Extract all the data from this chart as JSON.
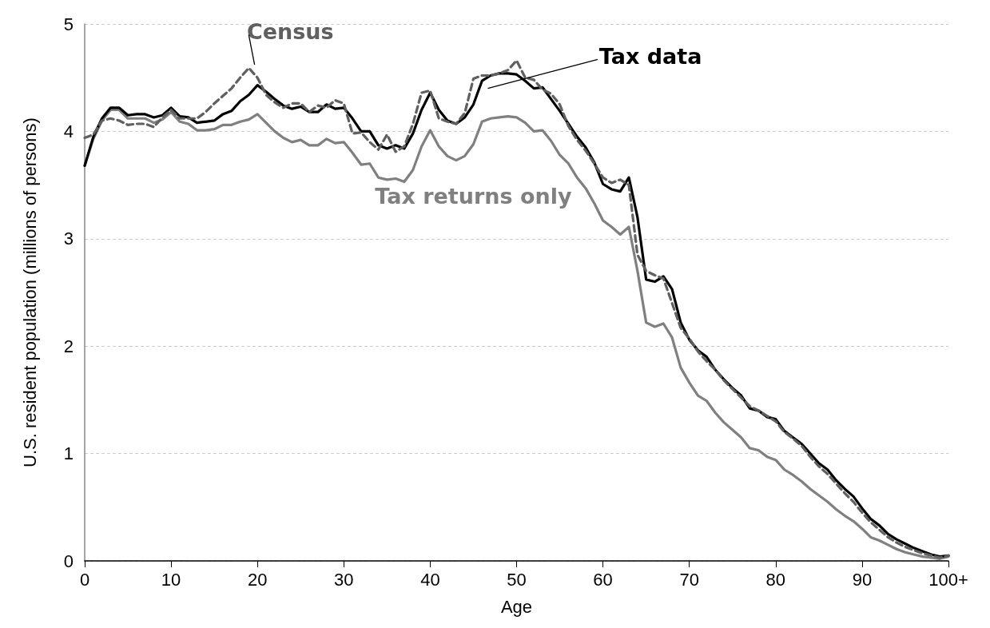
{
  "chart_data": {
    "type": "line",
    "xlabel": "Age",
    "ylabel": "U.S. resident population (millions of persons)",
    "x": [
      0,
      1,
      2,
      3,
      4,
      5,
      6,
      7,
      8,
      9,
      10,
      11,
      12,
      13,
      14,
      15,
      16,
      17,
      18,
      19,
      20,
      21,
      22,
      23,
      24,
      25,
      26,
      27,
      28,
      29,
      30,
      31,
      32,
      33,
      34,
      35,
      36,
      37,
      38,
      39,
      40,
      41,
      42,
      43,
      44,
      45,
      46,
      47,
      48,
      49,
      50,
      51,
      52,
      53,
      54,
      55,
      56,
      57,
      58,
      59,
      60,
      61,
      62,
      63,
      64,
      65,
      66,
      67,
      68,
      69,
      70,
      71,
      72,
      73,
      74,
      75,
      76,
      77,
      78,
      79,
      80,
      81,
      82,
      83,
      84,
      85,
      86,
      87,
      88,
      89,
      90,
      91,
      92,
      93,
      94,
      95,
      96,
      97,
      98,
      99,
      100
    ],
    "series": [
      {
        "name": "Census",
        "color": "#606060",
        "line_style": "dashed",
        "values": [
          3.94,
          3.97,
          4.1,
          4.12,
          4.1,
          4.06,
          4.07,
          4.07,
          4.04,
          4.13,
          4.2,
          4.12,
          4.12,
          4.12,
          4.18,
          4.26,
          4.33,
          4.4,
          4.5,
          4.59,
          4.5,
          4.34,
          4.27,
          4.22,
          4.26,
          4.26,
          4.18,
          4.24,
          4.22,
          4.29,
          4.26,
          3.98,
          3.99,
          3.9,
          3.83,
          3.97,
          3.81,
          3.86,
          4.07,
          4.36,
          4.38,
          4.12,
          4.09,
          4.07,
          4.17,
          4.49,
          4.52,
          4.52,
          4.54,
          4.57,
          4.66,
          4.5,
          4.48,
          4.39,
          4.35,
          4.25,
          4.05,
          3.92,
          3.82,
          3.7,
          3.57,
          3.52,
          3.55,
          3.5,
          2.85,
          2.7,
          2.66,
          2.63,
          2.4,
          2.17,
          2.07,
          1.95,
          1.86,
          1.78,
          1.68,
          1.6,
          1.52,
          1.44,
          1.4,
          1.35,
          1.3,
          1.2,
          1.14,
          1.07,
          0.97,
          0.88,
          0.81,
          0.72,
          0.63,
          0.55,
          0.45,
          0.36,
          0.29,
          0.22,
          0.17,
          0.13,
          0.1,
          0.07,
          0.05,
          0.03,
          0.05
        ]
      },
      {
        "name": "Tax data",
        "color": "#000000",
        "line_style": "solid",
        "values": [
          3.68,
          3.95,
          4.12,
          4.22,
          4.22,
          4.15,
          4.16,
          4.16,
          4.13,
          4.15,
          4.22,
          4.14,
          4.13,
          4.08,
          4.09,
          4.1,
          4.16,
          4.19,
          4.28,
          4.34,
          4.43,
          4.37,
          4.3,
          4.24,
          4.21,
          4.23,
          4.18,
          4.18,
          4.25,
          4.21,
          4.22,
          4.12,
          4.0,
          4.0,
          3.87,
          3.84,
          3.87,
          3.84,
          3.98,
          4.2,
          4.36,
          4.2,
          4.1,
          4.07,
          4.13,
          4.25,
          4.47,
          4.52,
          4.54,
          4.54,
          4.53,
          4.47,
          4.4,
          4.41,
          4.3,
          4.19,
          4.07,
          3.95,
          3.85,
          3.71,
          3.51,
          3.46,
          3.44,
          3.57,
          3.2,
          2.62,
          2.6,
          2.65,
          2.53,
          2.22,
          2.06,
          1.96,
          1.9,
          1.78,
          1.69,
          1.61,
          1.54,
          1.42,
          1.4,
          1.34,
          1.32,
          1.21,
          1.15,
          1.09,
          1.0,
          0.91,
          0.85,
          0.75,
          0.67,
          0.6,
          0.49,
          0.39,
          0.33,
          0.25,
          0.2,
          0.16,
          0.12,
          0.09,
          0.06,
          0.04,
          0.05
        ]
      },
      {
        "name": "Tax returns only",
        "color": "#808080",
        "line_style": "solid",
        "values": [
          3.68,
          3.93,
          4.1,
          4.2,
          4.2,
          4.12,
          4.12,
          4.12,
          4.08,
          4.11,
          4.18,
          4.09,
          4.07,
          4.01,
          4.01,
          4.02,
          4.06,
          4.06,
          4.09,
          4.11,
          4.16,
          4.08,
          4.0,
          3.94,
          3.9,
          3.92,
          3.87,
          3.87,
          3.93,
          3.89,
          3.9,
          3.8,
          3.69,
          3.7,
          3.57,
          3.55,
          3.56,
          3.53,
          3.64,
          3.86,
          4.01,
          3.86,
          3.77,
          3.73,
          3.77,
          3.88,
          4.09,
          4.12,
          4.13,
          4.14,
          4.13,
          4.08,
          4.0,
          4.01,
          3.91,
          3.78,
          3.7,
          3.57,
          3.47,
          3.33,
          3.17,
          3.11,
          3.04,
          3.11,
          2.7,
          2.22,
          2.18,
          2.21,
          2.08,
          1.8,
          1.66,
          1.54,
          1.49,
          1.38,
          1.29,
          1.22,
          1.15,
          1.05,
          1.03,
          0.97,
          0.94,
          0.85,
          0.8,
          0.74,
          0.67,
          0.61,
          0.55,
          0.48,
          0.42,
          0.37,
          0.3,
          0.22,
          0.19,
          0.15,
          0.11,
          0.08,
          0.06,
          0.04,
          0.03,
          0.02,
          0.04
        ]
      }
    ],
    "xlim": [
      0,
      100
    ],
    "xticks": [
      0,
      10,
      20,
      30,
      40,
      50,
      60,
      70,
      80,
      90,
      {
        "value": 100,
        "label": "100+"
      }
    ],
    "ylim": [
      0,
      5
    ],
    "yticks": [
      0,
      1,
      2,
      3,
      4,
      5
    ],
    "grid": "y",
    "legend": false,
    "marker": "none"
  }
}
